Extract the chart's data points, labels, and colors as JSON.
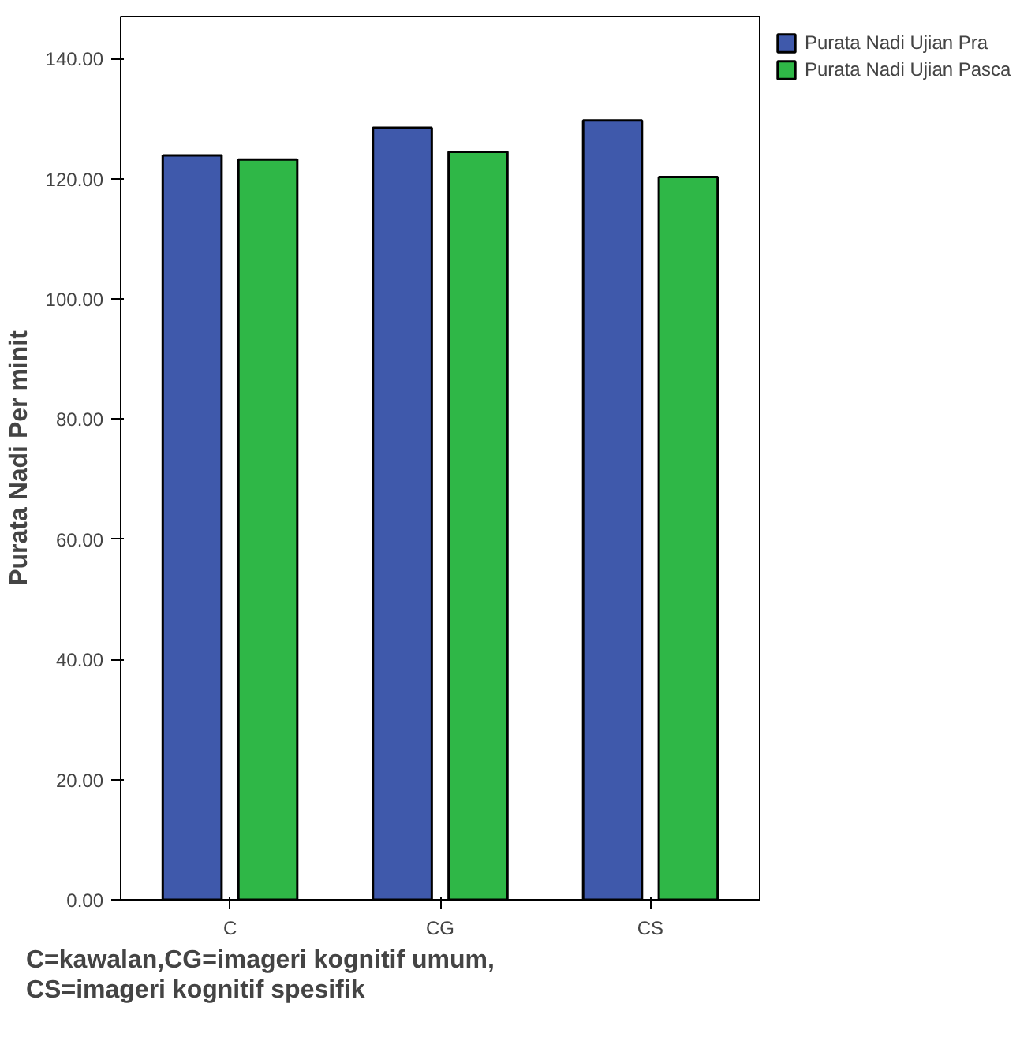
{
  "chart_data": {
    "type": "bar",
    "xlabel": "C=kawalan,CG=imageri kognitif umum,\nCS=imageri kognitif spesifik",
    "ylabel": "Purata Nadi Per minit",
    "categories": [
      "C",
      "CG",
      "CS"
    ],
    "series": [
      {
        "name": "Purata Nadi Ujian Pra",
        "color": "#3f59ab",
        "values": [
          123.9,
          128.5,
          129.7
        ]
      },
      {
        "name": "Purata Nadi Ujian Pasca",
        "color": "#2fb747",
        "values": [
          123.2,
          124.5,
          120.3
        ]
      }
    ],
    "ylim": [
      0,
      147
    ],
    "yticks": [
      {
        "value": 0,
        "label": "0.00"
      },
      {
        "value": 20,
        "label": "20.00"
      },
      {
        "value": 40,
        "label": "40.00"
      },
      {
        "value": 60,
        "label": "60.00"
      },
      {
        "value": 80,
        "label": "80.00"
      },
      {
        "value": 100,
        "label": "100.00"
      },
      {
        "value": 120,
        "label": "120.00"
      },
      {
        "value": 140,
        "label": "140.00"
      }
    ],
    "legend": "top right"
  }
}
